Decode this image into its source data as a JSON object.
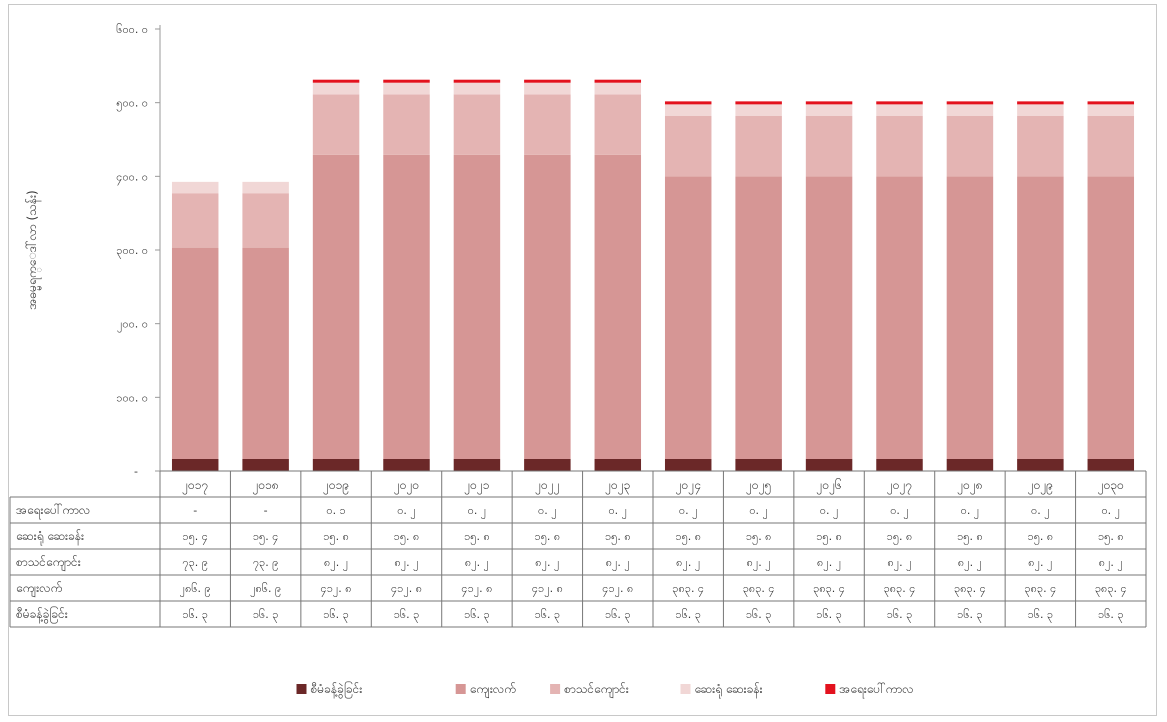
{
  "chart_data": {
    "type": "bar",
    "stacked": true,
    "ylabel": "အဓမ္မရက္ေဒါ်လာ (သန်း)",
    "ylim": [
      0,
      600
    ],
    "yticks": [
      "-",
      "၁၀၀. ၀",
      "၂၀၀. ၀",
      "၃၀၀. ၀",
      "၄၀၀. ၀",
      "၅၀၀. ၀",
      "၆၀၀. ၀"
    ],
    "categories": [
      "၂၀၁၇",
      "၂၀၁၈",
      "၂၀၁၉",
      "၂၀၂၀",
      "၂၀၂၁",
      "၂၀၂၂",
      "၂၀၂၃",
      "၂၀၂၄",
      "၂၀၂၅",
      "၂၀၂၆",
      "၂၀၂၇",
      "၂၀၂၈",
      "၂၀၂၉",
      "၂၀၃၀"
    ],
    "legend_position": "bottom",
    "grid": false,
    "series": [
      {
        "name": "စီမံခန့်ခွဲခြင်း",
        "color": "#6b2828",
        "values": [
          16.3,
          16.3,
          16.3,
          16.3,
          16.3,
          16.3,
          16.3,
          16.3,
          16.3,
          16.3,
          16.3,
          16.3,
          16.3,
          16.3
        ],
        "labels": [
          "၁၆. ၃",
          "၁၆. ၃",
          "၁၆. ၃",
          "၁၆. ၃",
          "၁၆. ၃",
          "၁၆. ၃",
          "၁၆. ၃",
          "၁၆. ၃",
          "၁၆. ၃",
          "၁၆. ၃",
          "၁၆. ၃",
          "၁၆. ၃",
          "၁၆. ၃",
          "၁၆. ၃"
        ]
      },
      {
        "name": "ကျေးလက်",
        "color": "#d69695",
        "values": [
          286.9,
          286.9,
          412.8,
          412.8,
          412.8,
          412.8,
          412.8,
          383.4,
          383.4,
          383.4,
          383.4,
          383.4,
          383.4,
          383.4
        ],
        "labels": [
          "၂၈၆. ၉",
          "၂၈၆. ၉",
          "၄၁၂. ၈",
          "၄၁၂. ၈",
          "၄၁၂. ၈",
          "၄၁၂. ၈",
          "၄၁၂. ၈",
          "၃၈၃. ၄",
          "၃၈၃. ၄",
          "၃၈၃. ၄",
          "၃၈၃. ၄",
          "၃၈၃. ၄",
          "၃၈၃. ၄",
          "၃၈၃. ၄"
        ]
      },
      {
        "name": "စာသင်ကျောင်း",
        "color": "#e4b4b3",
        "values": [
          73.9,
          73.9,
          82.2,
          82.2,
          82.2,
          82.2,
          82.2,
          82.2,
          82.2,
          82.2,
          82.2,
          82.2,
          82.2,
          82.2
        ],
        "labels": [
          "၇၃. ၉",
          "၇၃. ၉",
          "၈၂. ၂",
          "၈၂. ၂",
          "၈၂. ၂",
          "၈၂. ၂",
          "၈၂. ၂",
          "၈၂. ၂",
          "၈၂. ၂",
          "၈၂. ၂",
          "၈၂. ၂",
          "၈၂. ၂",
          "၈၂. ၂",
          "၈၂. ၂"
        ]
      },
      {
        "name": "ဆေးရုံ ဆေးခန်း",
        "color": "#f1d7d6",
        "values": [
          15.4,
          15.4,
          15.8,
          15.8,
          15.8,
          15.8,
          15.8,
          15.8,
          15.8,
          15.8,
          15.8,
          15.8,
          15.8,
          15.8
        ],
        "labels": [
          "၁၅. ၄",
          "၁၅. ၄",
          "၁၅. ၈",
          "၁၅. ၈",
          "၁၅. ၈",
          "၁၅. ၈",
          "၁၅. ၈",
          "၁၅. ၈",
          "၁၅. ၈",
          "၁၅. ၈",
          "၁၅. ၈",
          "၁၅. ၈",
          "၁၅. ၈",
          "၁၅. ၈"
        ]
      },
      {
        "name": "အရေးပေါ်ကာလ",
        "color": "#e3121e",
        "values": [
          0,
          0,
          0.1,
          0.2,
          0.2,
          0.2,
          0.2,
          0.2,
          0.2,
          0.2,
          0.2,
          0.2,
          0.2,
          0.2
        ],
        "labels": [
          "-",
          "-",
          "၀. ၁",
          "၀. ၂",
          "၀. ၂",
          "၀. ၂",
          "၀. ၂",
          "၀. ၂",
          "၀. ၂",
          "၀. ၂",
          "၀. ၂",
          "၀. ၂",
          "၀. ၂",
          "၀. ၂"
        ]
      }
    ],
    "table_row_order": [
      "အရေးပေါ်ကာလ",
      "ဆေးရုံ ဆေးခန်း",
      "စာသင်ကျောင်း",
      "ကျေးလက်",
      "စီမံခန့်ခွဲခြင်း"
    ]
  }
}
